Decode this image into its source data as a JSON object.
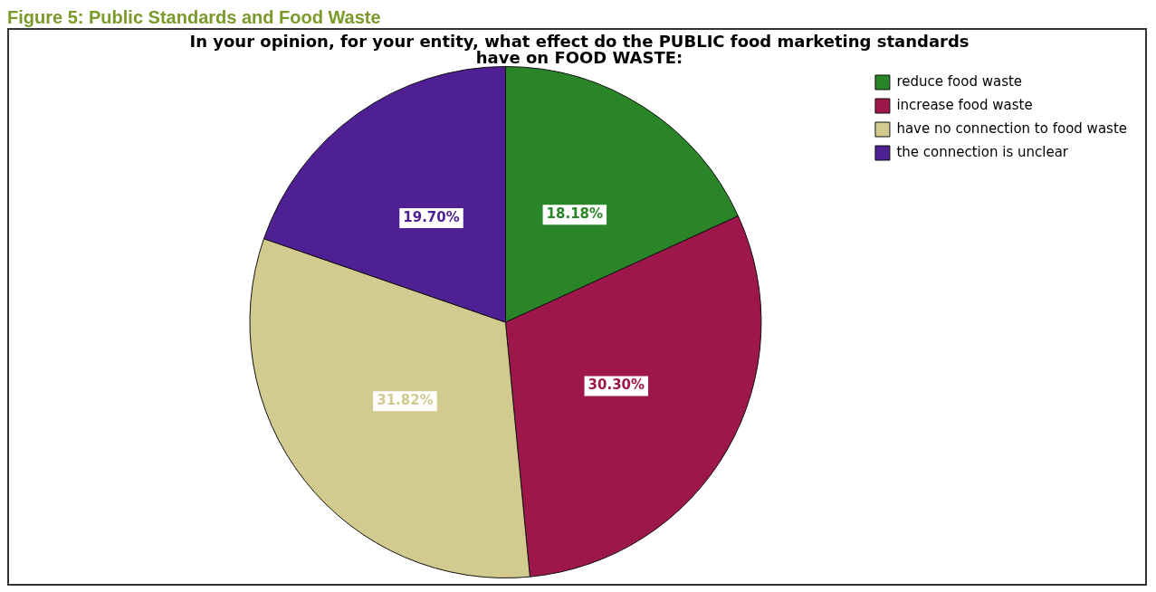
{
  "chart_data": {
    "type": "pie",
    "title": "In your opinion, for your entity, what effect do the PUBLIC food marketing standards  have on FOOD WASTE:",
    "annotations": [
      "Figure 5: Public Standards and Food Waste"
    ],
    "categories": [
      "reduce food waste",
      "increase food waste",
      "have no connection to food waste",
      "the connection is unclear"
    ],
    "values": [
      18.18,
      30.3,
      31.82,
      19.7
    ],
    "colors": [
      "#2a8529",
      "#9e174b",
      "#d2ca8e",
      "#4f1f94"
    ],
    "value_labels": [
      "18.18%",
      "30.30%",
      "31.82%",
      "19.70%"
    ],
    "legend": "top right"
  }
}
